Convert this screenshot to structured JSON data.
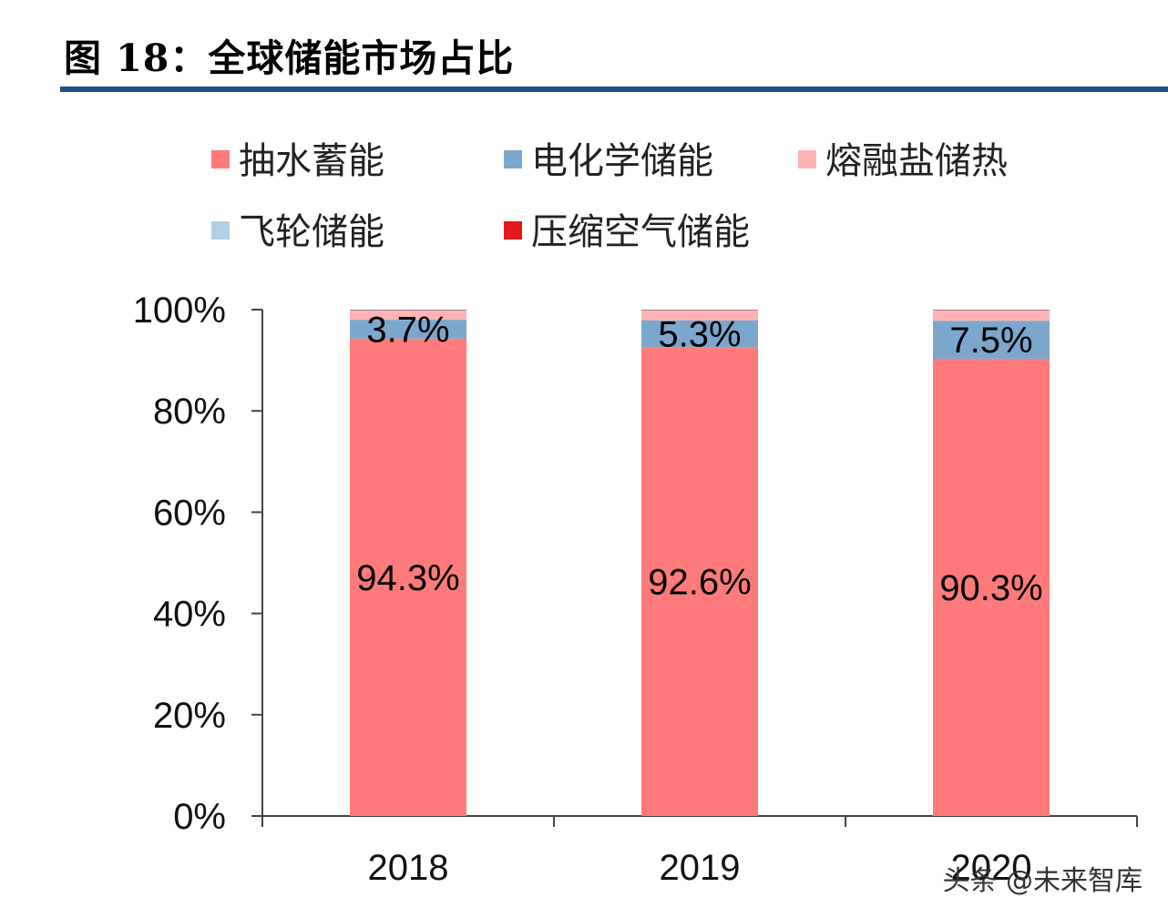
{
  "figure": {
    "title": "图 18：全球储能市场占比",
    "watermark": "头条 @未来智库"
  },
  "chart_data": {
    "type": "bar",
    "stacked": true,
    "categories": [
      "2018",
      "2019",
      "2020"
    ],
    "series": [
      {
        "name": "抽水蓄能",
        "color": "#ff7b7b",
        "values": [
          94.3,
          92.6,
          90.3
        ],
        "labels": [
          "94.3%",
          "92.6%",
          "90.3%"
        ]
      },
      {
        "name": "电化学储能",
        "color": "#7ba7cc",
        "values": [
          3.7,
          5.3,
          7.5
        ],
        "labels": [
          "3.7%",
          "5.3%",
          "7.5%"
        ]
      },
      {
        "name": "熔融盐储热",
        "color": "#ffb3b3",
        "values": [
          1.6,
          1.8,
          1.9
        ],
        "labels": [
          null,
          null,
          null
        ]
      },
      {
        "name": "飞轮储能",
        "color": "#b3cfe3",
        "values": [
          0.3,
          0.2,
          0.2
        ],
        "labels": [
          null,
          null,
          null
        ]
      },
      {
        "name": "压缩空气储能",
        "color": "#e31a1c",
        "values": [
          0.1,
          0.1,
          0.1
        ],
        "labels": [
          null,
          null,
          null
        ]
      }
    ],
    "ylim": [
      0,
      100
    ],
    "yticks": [
      "0%",
      "20%",
      "40%",
      "60%",
      "80%",
      "100%"
    ],
    "grid": false,
    "legend_position": "top"
  }
}
